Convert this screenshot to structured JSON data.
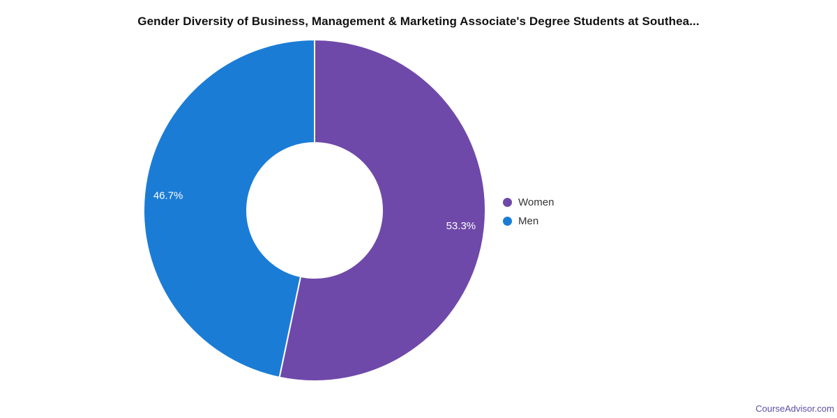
{
  "chart_data": {
    "type": "pie",
    "donut": true,
    "title": "Gender Diversity of Business, Management & Marketing Associate's Degree Students at Southea...",
    "series": [
      {
        "name": "Women",
        "value": 53.3,
        "label": "53.3%",
        "color": "#6f49a9"
      },
      {
        "name": "Men",
        "value": 46.7,
        "label": "46.7%",
        "color": "#1b7cd6"
      }
    ],
    "start_angle_deg": 0,
    "legend_position": "right",
    "slice_border_color": "#ffffff",
    "data_label_color": "#ffffff"
  },
  "footer": {
    "brand": "CourseAdvisor.com",
    "color": "#5b50a7"
  }
}
